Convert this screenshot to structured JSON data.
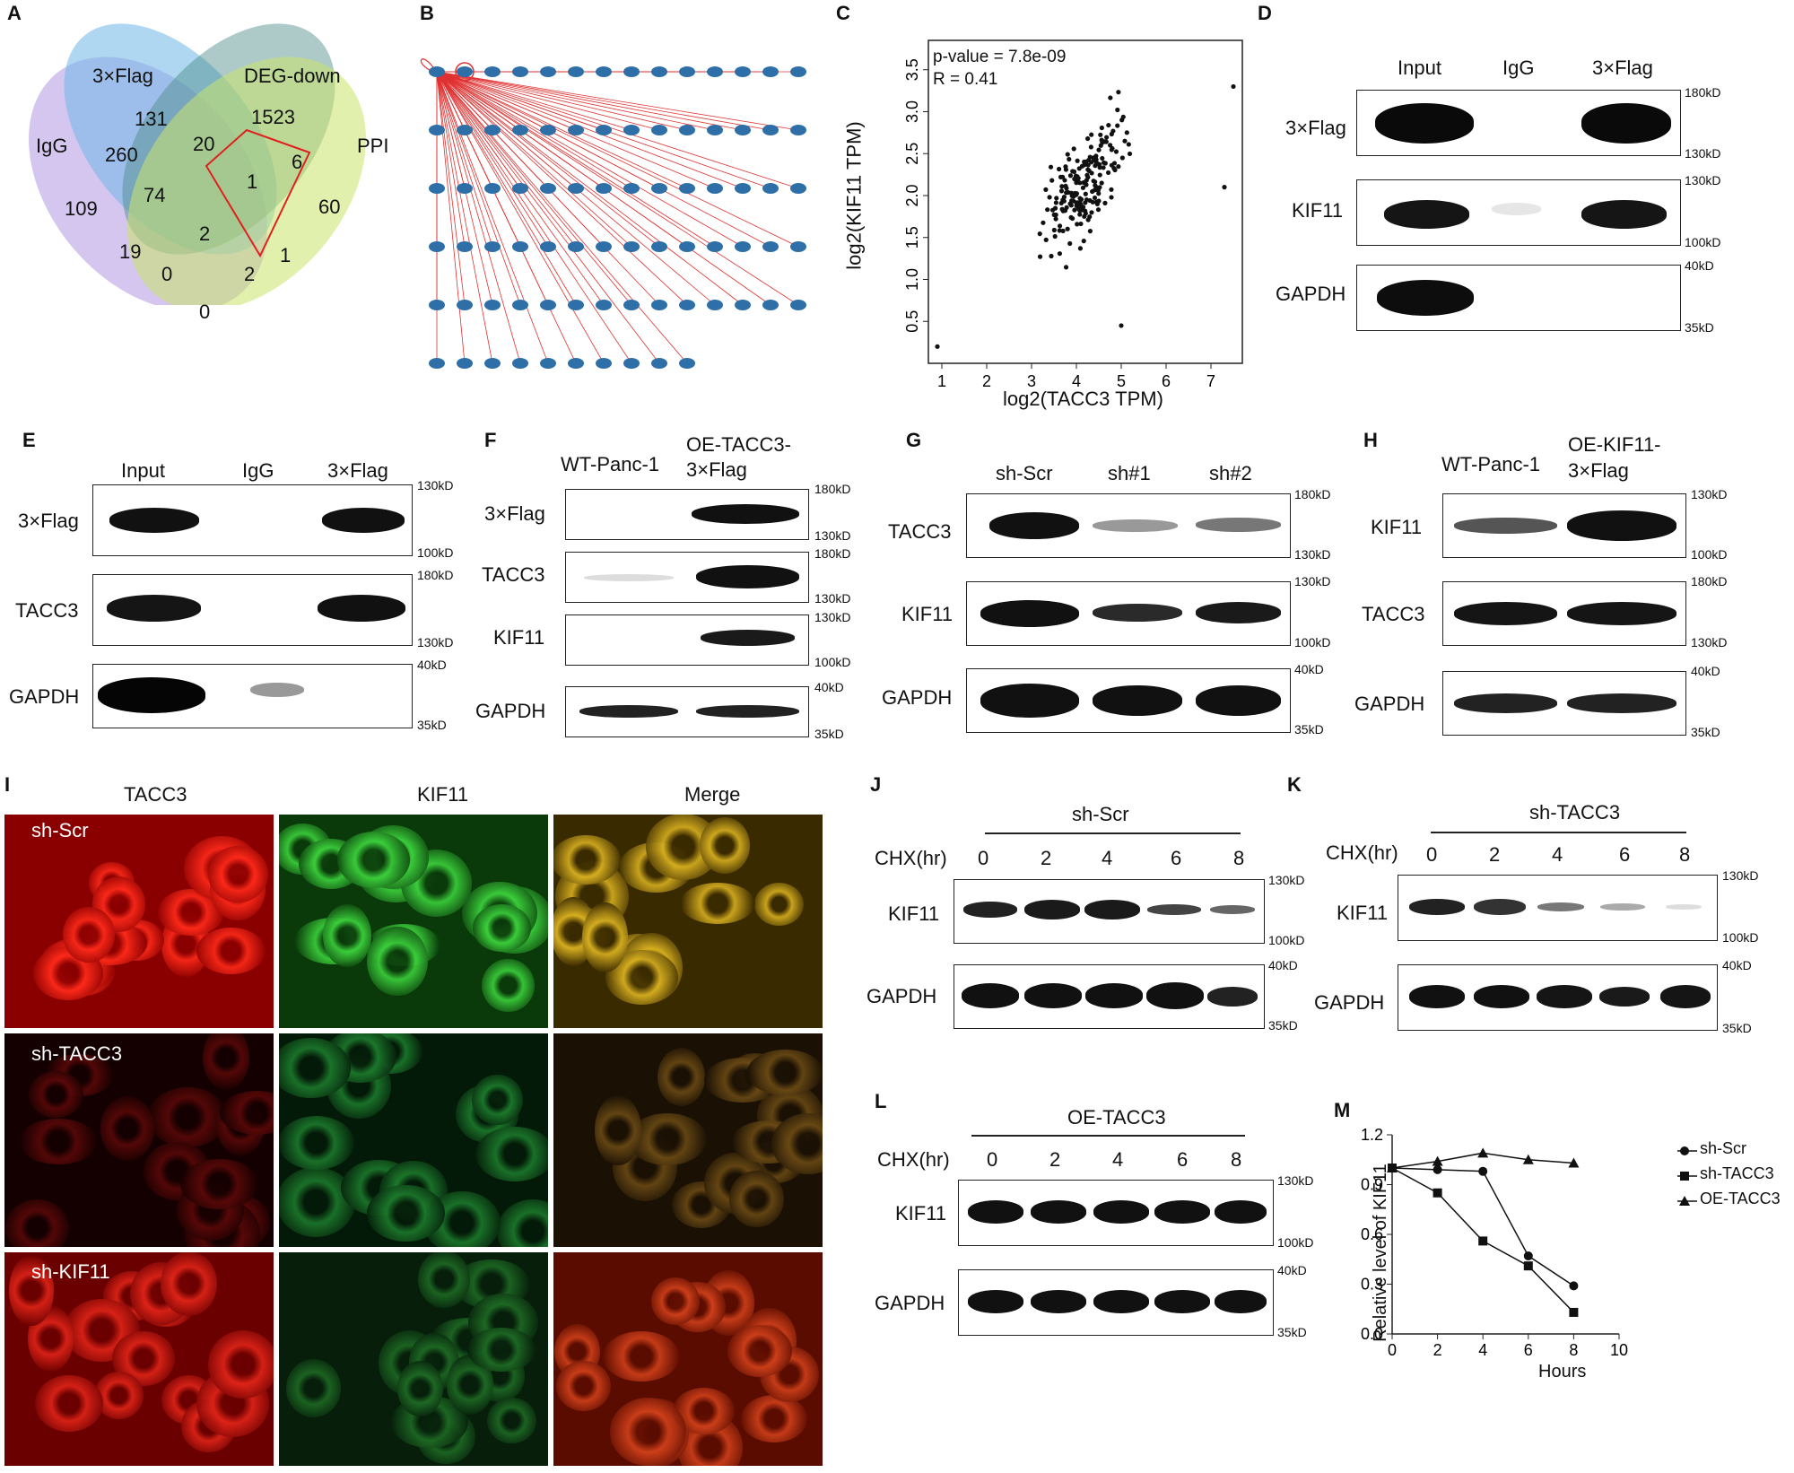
{
  "panels": {
    "A": "A",
    "B": "B",
    "C": "C",
    "D": "D",
    "E": "E",
    "F": "F",
    "G": "G",
    "H": "H",
    "I": "I",
    "J": "J",
    "K": "K",
    "L": "L",
    "M": "M"
  },
  "venn": {
    "sets": [
      "IgG",
      "3×Flag",
      "DEG-down",
      "PPI"
    ],
    "counts": [
      {
        "v": "131"
      },
      {
        "v": "1523"
      },
      {
        "v": "260"
      },
      {
        "v": "20"
      },
      {
        "v": "6"
      },
      {
        "v": "109"
      },
      {
        "v": "74"
      },
      {
        "v": "1"
      },
      {
        "v": "60"
      },
      {
        "v": "2"
      },
      {
        "v": "19"
      },
      {
        "v": "1"
      },
      {
        "v": "0"
      },
      {
        "v": "2"
      },
      {
        "v": "0"
      }
    ],
    "colors": {
      "igg": "#a98de0",
      "flag": "#6fb7e6",
      "deg": "#4a8a88",
      "ppi": "#cbe36a",
      "highlight": "#e02020"
    }
  },
  "network": {
    "edge_color": "#e03030",
    "node_color": "#2f6fa8"
  },
  "scatter": {
    "pvalue": "p-value = 7.8e-09",
    "r": "R = 0.41",
    "xlabel": "log2(TACC3 TPM)",
    "ylabel": "log2(KIF11 TPM)",
    "xticks": [
      "1",
      "2",
      "3",
      "4",
      "5",
      "6",
      "7"
    ],
    "yticks": [
      "0.5",
      "1.0",
      "1.5",
      "2.0",
      "2.5",
      "3.0",
      "3.5"
    ]
  },
  "wb": {
    "D": {
      "lanes": [
        "Input",
        "IgG",
        "3×Flag"
      ],
      "rows": [
        "3×Flag",
        "KIF11",
        "GAPDH"
      ],
      "mw": [
        [
          "180kD",
          "130kD"
        ],
        [
          "130kD",
          "100kD"
        ],
        [
          "40kD",
          "35kD"
        ]
      ]
    },
    "E": {
      "lanes": [
        "Input",
        "IgG",
        "3×Flag"
      ],
      "rows": [
        "3×Flag",
        "TACC3",
        "GAPDH"
      ],
      "mw": [
        [
          "130kD",
          "100kD"
        ],
        [
          "180kD",
          "130kD"
        ],
        [
          "40kD",
          "35kD"
        ]
      ]
    },
    "F": {
      "lanes": [
        "WT-Panc-1",
        "OE-TACC3-",
        "3×Flag"
      ],
      "rows": [
        "3×Flag",
        "TACC3",
        "KIF11",
        "GAPDH"
      ],
      "mw": [
        [
          "180kD",
          "130kD"
        ],
        [
          "180kD",
          "130kD"
        ],
        [
          "130kD",
          "100kD"
        ],
        [
          "40kD",
          "35kD"
        ]
      ]
    },
    "G": {
      "lanes": [
        "sh-Scr",
        "sh#1",
        "sh#2"
      ],
      "rows": [
        "TACC3",
        "KIF11",
        "GAPDH"
      ],
      "mw": [
        [
          "180kD",
          "130kD"
        ],
        [
          "130kD",
          "100kD"
        ],
        [
          "40kD",
          "35kD"
        ]
      ]
    },
    "H": {
      "lanes": [
        "WT-Panc-1",
        "OE-KIF11-",
        "3×Flag"
      ],
      "rows": [
        "KIF11",
        "TACC3",
        "GAPDH"
      ],
      "mw": [
        [
          "130kD",
          "100kD"
        ],
        [
          "180kD",
          "130kD"
        ],
        [
          "40kD",
          "35kD"
        ]
      ]
    },
    "J": {
      "group": "sh-Scr",
      "chx": "CHX(hr)",
      "times": [
        "0",
        "2",
        "4",
        "6",
        "8"
      ],
      "rows": [
        "KIF11",
        "GAPDH"
      ],
      "mw": [
        [
          "130kD",
          "100kD"
        ],
        [
          "40kD",
          "35kD"
        ]
      ]
    },
    "K": {
      "group": "sh-TACC3",
      "chx": "CHX(hr)",
      "times": [
        "0",
        "2",
        "4",
        "6",
        "8"
      ],
      "rows": [
        "KIF11",
        "GAPDH"
      ],
      "mw": [
        [
          "130kD",
          "100kD"
        ],
        [
          "40kD",
          "35kD"
        ]
      ]
    },
    "L": {
      "group": "OE-TACC3",
      "chx": "CHX(hr)",
      "times": [
        "0",
        "2",
        "4",
        "6",
        "8"
      ],
      "rows": [
        "KIF11",
        "GAPDH"
      ],
      "mw": [
        [
          "130kD",
          "100kD"
        ],
        [
          "40kD",
          "35kD"
        ]
      ]
    }
  },
  "if": {
    "cols": [
      "TACC3",
      "KIF11",
      "Merge"
    ],
    "rows": [
      "sh-Scr",
      "sh-TACC3",
      "sh-KIF11"
    ]
  },
  "chart_data": {
    "type": "line",
    "xlabel": "Hours",
    "ylabel": "Relative level of KIF11",
    "xlim": [
      0,
      10
    ],
    "ylim": [
      0,
      1.2
    ],
    "xticks": [
      "0",
      "2",
      "4",
      "6",
      "8",
      "10"
    ],
    "yticks": [
      "0.0",
      "0.3",
      "0.6",
      "0.9",
      "1.2"
    ],
    "x": [
      0,
      2,
      4,
      6,
      8
    ],
    "series": [
      {
        "name": "sh-Scr",
        "marker": "circle",
        "values": [
          1.0,
          0.99,
          0.98,
          0.47,
          0.29
        ]
      },
      {
        "name": "sh-TACC3",
        "marker": "square",
        "values": [
          1.0,
          0.85,
          0.56,
          0.41,
          0.13
        ]
      },
      {
        "name": "OE-TACC3",
        "marker": "triangle",
        "values": [
          1.0,
          1.04,
          1.09,
          1.05,
          1.03
        ]
      }
    ],
    "legend": "top-right"
  }
}
